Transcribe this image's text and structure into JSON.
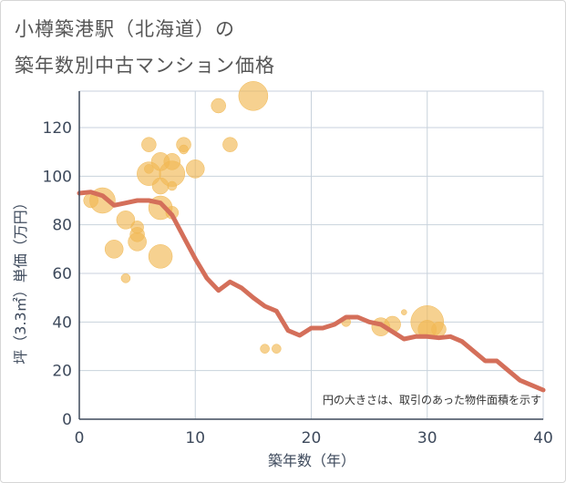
{
  "chart_data": {
    "type": "scatter",
    "title_line1": "小樽築港駅（北海道）の",
    "title_line2": "築年数別中古マンション価格",
    "xlabel": "築年数（年）",
    "ylabel": "坪（3.3㎡）単価（万円）",
    "xlim": [
      0,
      40
    ],
    "ylim": [
      0,
      135
    ],
    "xticks": [
      0,
      10,
      20,
      30,
      40
    ],
    "yticks": [
      0,
      20,
      40,
      60,
      80,
      100,
      120
    ],
    "note": "円の大きさは、取引のあった物件面積を示す",
    "colors": {
      "bubble": "#f1b954",
      "line": "#d46f5a",
      "grid": "#c8d2dc",
      "axis": "#3e4a5c"
    },
    "bubbles": [
      {
        "x": 1,
        "y": 90,
        "size": 8
      },
      {
        "x": 2,
        "y": 90,
        "size": 14
      },
      {
        "x": 3,
        "y": 70,
        "size": 10
      },
      {
        "x": 4,
        "y": 82,
        "size": 10
      },
      {
        "x": 4,
        "y": 58,
        "size": 5
      },
      {
        "x": 5,
        "y": 73,
        "size": 10
      },
      {
        "x": 5,
        "y": 76,
        "size": 8
      },
      {
        "x": 5,
        "y": 79,
        "size": 7
      },
      {
        "x": 6,
        "y": 113,
        "size": 8
      },
      {
        "x": 6,
        "y": 101,
        "size": 13
      },
      {
        "x": 6,
        "y": 103,
        "size": 5
      },
      {
        "x": 7,
        "y": 106,
        "size": 10
      },
      {
        "x": 7,
        "y": 96,
        "size": 9
      },
      {
        "x": 7,
        "y": 87,
        "size": 13
      },
      {
        "x": 7,
        "y": 67,
        "size": 13
      },
      {
        "x": 8,
        "y": 106,
        "size": 9
      },
      {
        "x": 8,
        "y": 101,
        "size": 14
      },
      {
        "x": 8,
        "y": 96,
        "size": 5
      },
      {
        "x": 8,
        "y": 85,
        "size": 7
      },
      {
        "x": 9,
        "y": 113,
        "size": 8
      },
      {
        "x": 9,
        "y": 111,
        "size": 5
      },
      {
        "x": 10,
        "y": 103,
        "size": 10
      },
      {
        "x": 12,
        "y": 129,
        "size": 8
      },
      {
        "x": 13,
        "y": 113,
        "size": 8
      },
      {
        "x": 15,
        "y": 133,
        "size": 16
      },
      {
        "x": 16,
        "y": 29,
        "size": 5
      },
      {
        "x": 17,
        "y": 29,
        "size": 5
      },
      {
        "x": 23,
        "y": 40,
        "size": 5
      },
      {
        "x": 26,
        "y": 38,
        "size": 10
      },
      {
        "x": 27,
        "y": 39,
        "size": 9
      },
      {
        "x": 28,
        "y": 44,
        "size": 3
      },
      {
        "x": 30,
        "y": 40,
        "size": 18
      },
      {
        "x": 30,
        "y": 37,
        "size": 10
      },
      {
        "x": 31,
        "y": 37,
        "size": 8
      }
    ],
    "trend": {
      "x": [
        0,
        1,
        2,
        3,
        4,
        5,
        6,
        7,
        8,
        9,
        10,
        11,
        12,
        13,
        14,
        15,
        16,
        17,
        18,
        19,
        20,
        21,
        22,
        23,
        24,
        25,
        26,
        27,
        28,
        29,
        30,
        31,
        32,
        33,
        34,
        35,
        36,
        37,
        38,
        39,
        40
      ],
      "y": [
        93,
        93.5,
        92,
        88,
        89,
        90,
        90,
        89,
        84,
        75,
        66,
        58,
        53,
        56.5,
        54,
        50,
        46.5,
        44.5,
        36.5,
        34.5,
        37.5,
        37.5,
        39,
        42,
        42,
        40,
        39,
        36,
        33,
        34,
        34,
        33.5,
        34,
        32,
        28,
        24,
        24,
        20,
        16,
        14,
        12
      ]
    }
  }
}
